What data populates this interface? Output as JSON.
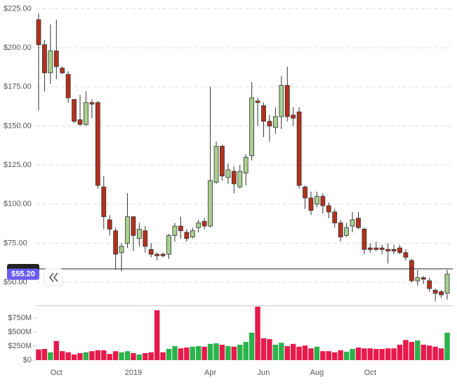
{
  "chart_data": {
    "type": "candlestick",
    "categories": [
      null,
      null,
      null,
      "Oct",
      null,
      null,
      null,
      null,
      null,
      null,
      null,
      null,
      null,
      null,
      null,
      null,
      "2019",
      null,
      null,
      null,
      null,
      null,
      null,
      null,
      null,
      null,
      null,
      null,
      null,
      "Apr",
      null,
      null,
      null,
      null,
      null,
      null,
      null,
      null,
      "Jun",
      null,
      null,
      null,
      null,
      null,
      null,
      null,
      null,
      "Aug",
      null,
      null,
      null,
      null,
      null,
      null,
      null,
      null,
      "Oct",
      null,
      null,
      null,
      null,
      null,
      null,
      null,
      null,
      null,
      null,
      null,
      null,
      null
    ],
    "open": [
      218,
      202,
      184,
      198,
      187,
      183,
      167,
      154,
      151,
      165,
      165,
      111,
      90,
      83,
      69,
      75,
      92,
      78,
      83,
      71,
      68,
      68,
      68,
      80,
      86,
      82,
      79,
      85,
      89,
      86,
      114,
      137,
      117,
      121,
      111,
      120,
      131,
      166,
      163,
      153,
      149,
      156,
      176,
      157,
      159,
      111,
      104,
      100,
      105,
      99,
      95,
      88,
      80,
      86,
      91,
      84,
      72,
      72,
      72,
      71,
      71,
      72,
      69,
      64,
      51,
      53,
      51,
      45,
      44,
      43
    ],
    "high": [
      222,
      205,
      215,
      218,
      188,
      185,
      167,
      170,
      172,
      167,
      166,
      118,
      93,
      85,
      75,
      107,
      92,
      88,
      86,
      75,
      69,
      69,
      81,
      88,
      92,
      84,
      85,
      90,
      91,
      175,
      140,
      138,
      126,
      124,
      125,
      132,
      178,
      168,
      165,
      157,
      162,
      182,
      188,
      162,
      162,
      112,
      108,
      108,
      107,
      101,
      97,
      90,
      88,
      95,
      95,
      85,
      75,
      76,
      74,
      75,
      74,
      74,
      71,
      65,
      58,
      54,
      53,
      46,
      45,
      58
    ],
    "low": [
      160,
      172,
      177,
      180,
      183,
      165,
      152,
      150,
      150,
      155,
      110,
      84,
      80,
      58,
      57,
      72,
      70,
      73,
      69,
      66,
      64,
      66,
      65,
      76,
      78,
      76,
      78,
      82,
      84,
      85,
      113,
      115,
      113,
      107,
      110,
      112,
      128,
      150,
      143,
      140,
      145,
      148,
      153,
      150,
      110,
      97,
      93,
      98,
      94,
      91,
      85,
      76,
      79,
      82,
      84,
      68,
      69,
      70,
      68,
      62,
      68,
      68,
      64,
      50,
      48,
      49,
      44,
      38,
      40,
      39
    ],
    "close": [
      202,
      184,
      198,
      188,
      184,
      168,
      153,
      151,
      165,
      164,
      112,
      92,
      84,
      68,
      73,
      92,
      80,
      84,
      73,
      68,
      67,
      67,
      80,
      86,
      83,
      78,
      83,
      88,
      86,
      115,
      137,
      118,
      122,
      113,
      121,
      130,
      168,
      165,
      153,
      150,
      156,
      176,
      156,
      155,
      112,
      104,
      96,
      105,
      99,
      95,
      88,
      79,
      85,
      90,
      85,
      71,
      71,
      71,
      71,
      70,
      70,
      69,
      66,
      51,
      53,
      52,
      46,
      43,
      42,
      55.2
    ],
    "volume": [
      190,
      200,
      140,
      340,
      160,
      140,
      100,
      125,
      140,
      160,
      175,
      175,
      110,
      160,
      140,
      160,
      125,
      100,
      125,
      140,
      890,
      140,
      200,
      250,
      210,
      225,
      240,
      250,
      240,
      290,
      300,
      275,
      250,
      240,
      275,
      325,
      490,
      955,
      390,
      375,
      275,
      310,
      250,
      290,
      240,
      260,
      210,
      240,
      160,
      160,
      140,
      175,
      150,
      200,
      225,
      210,
      210,
      200,
      200,
      210,
      210,
      275,
      360,
      325,
      350,
      275,
      260,
      240,
      210,
      490
    ],
    "ylim": [
      37.5,
      227
    ],
    "yticks": [
      {
        "value": 50,
        "label": "$50.00"
      },
      {
        "value": 75,
        "label": "$75.00"
      },
      {
        "value": 100,
        "label": "$100.00"
      },
      {
        "value": 125,
        "label": "$125.00"
      },
      {
        "value": 150,
        "label": "$150.00"
      },
      {
        "value": 175,
        "label": "$175.00"
      },
      {
        "value": 200,
        "label": "$200.00"
      },
      {
        "value": 225,
        "label": "$225.00"
      }
    ],
    "volume_ylim": [
      0,
      990
    ],
    "volume_yticks": [
      {
        "value": 0,
        "label": "$0"
      },
      {
        "value": 250,
        "label": "$250M"
      },
      {
        "value": 500,
        "label": "$500M"
      },
      {
        "value": 750,
        "label": "$750M"
      }
    ],
    "price_line": 58.6,
    "last_price_label": "$55.20",
    "up_color": "#a9cf8f",
    "down_color": "#b3311d",
    "volume_up_color": "#2ab34b",
    "volume_down_color": "#e8194b",
    "last_price_color": "#6a5cf5",
    "grid": true
  }
}
